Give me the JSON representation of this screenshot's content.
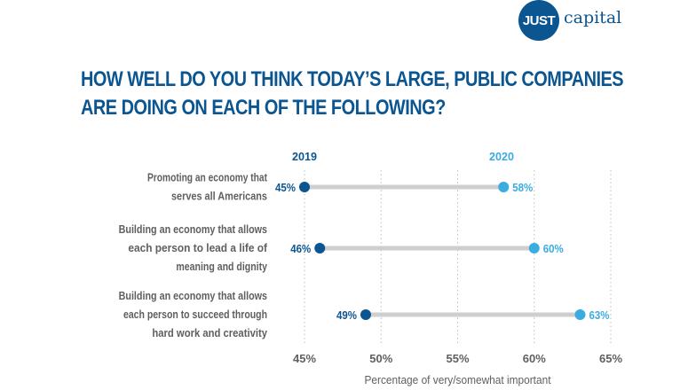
{
  "logo": {
    "badge_text": "JUST",
    "wordmark": "capital"
  },
  "title_lines": [
    "HOW WELL DO YOU THINK TODAY’S LARGE, PUBLIC COMPANIES",
    "ARE DOING ON EACH OF THE FOLLOWING?"
  ],
  "colors": {
    "series_2019": "#0b5591",
    "series_2020": "#3aace2",
    "connector": "#cfcfcf",
    "label_text": "#5f5f5f",
    "grid": "#bdbdbd"
  },
  "chart_data": {
    "type": "dumbbell",
    "title": "HOW WELL DO YOU THINK TODAY’S LARGE, PUBLIC COMPANIES ARE DOING ON EACH OF THE FOLLOWING?",
    "xlabel": "Percentage of very/somewhat important",
    "ylabel": "",
    "xlim": [
      45,
      65
    ],
    "x_ticks": [
      45,
      50,
      55,
      60,
      65
    ],
    "x_tick_labels": [
      "45%",
      "50%",
      "55%",
      "60%",
      "65%"
    ],
    "grid": "vertical dotted",
    "legend": "top (series labels above columns)",
    "series": [
      {
        "name": "2019",
        "values": [
          45,
          46,
          49
        ]
      },
      {
        "name": "2020",
        "values": [
          58,
          60,
          63
        ]
      }
    ],
    "categories": [
      [
        "Promoting an economy that",
        "serves all Americans"
      ],
      [
        "Building an economy that allows",
        "each person to lead a life of",
        "meaning and dignity"
      ],
      [
        "Building an economy that allows",
        "each person to succeed through",
        "hard work and creativity"
      ]
    ],
    "data_labels": {
      "2019": [
        "45%",
        "46%",
        "49%"
      ],
      "2020": [
        "58%",
        "60%",
        "63%"
      ]
    }
  }
}
